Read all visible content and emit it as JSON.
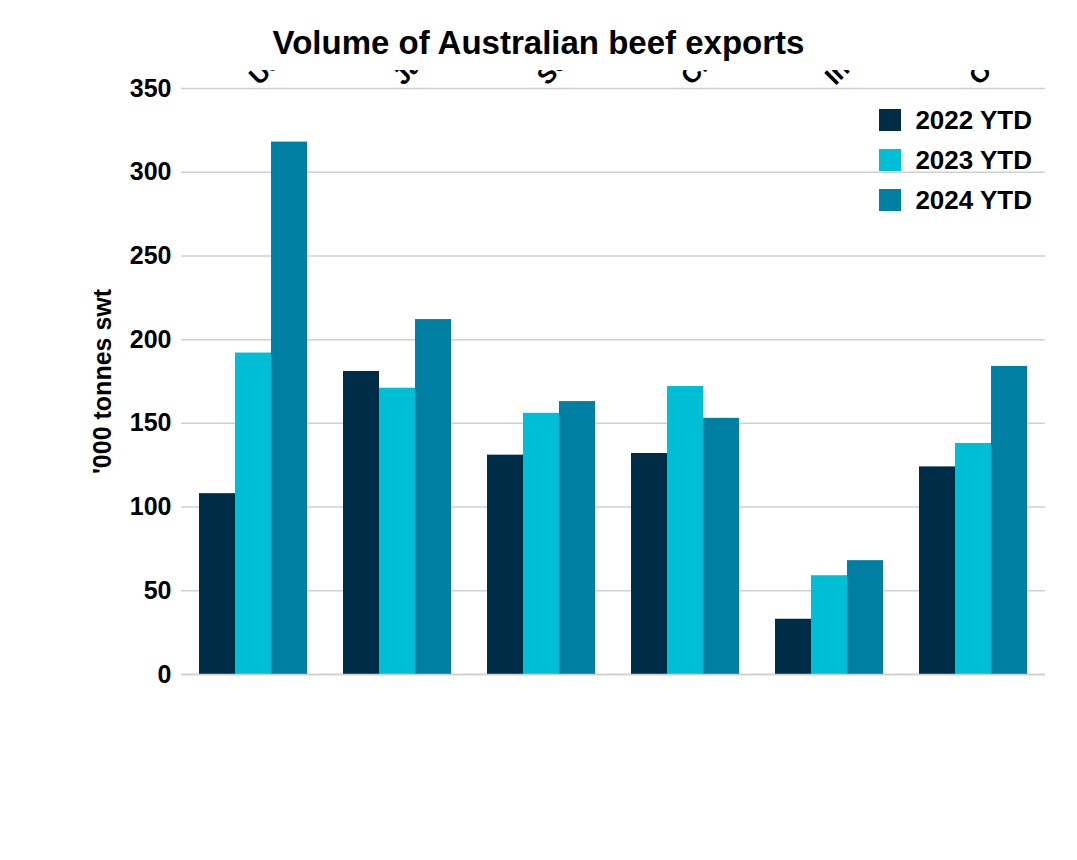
{
  "chart_data": {
    "type": "bar",
    "title": "Volume of Australian beef exports",
    "ylabel": "'000 tonnes swt",
    "categories": [
      "USA",
      "Japan",
      "South Korea",
      "China",
      "Indonesia",
      "Others"
    ],
    "series": [
      {
        "name": "2022 YTD",
        "color": "#002d46",
        "values": [
          108,
          181,
          131,
          132,
          33,
          124
        ]
      },
      {
        "name": "2023 YTD",
        "color": "#00bed6",
        "values": [
          192,
          171,
          156,
          172,
          59,
          138
        ]
      },
      {
        "name": "2024 YTD",
        "color": "#007fa3",
        "values": [
          318,
          212,
          163,
          153,
          68,
          184
        ]
      }
    ],
    "ylim": [
      0,
      350
    ],
    "yticks": [
      0,
      50,
      100,
      150,
      200,
      250,
      300,
      350
    ],
    "grid": true,
    "legend": "top-right"
  }
}
